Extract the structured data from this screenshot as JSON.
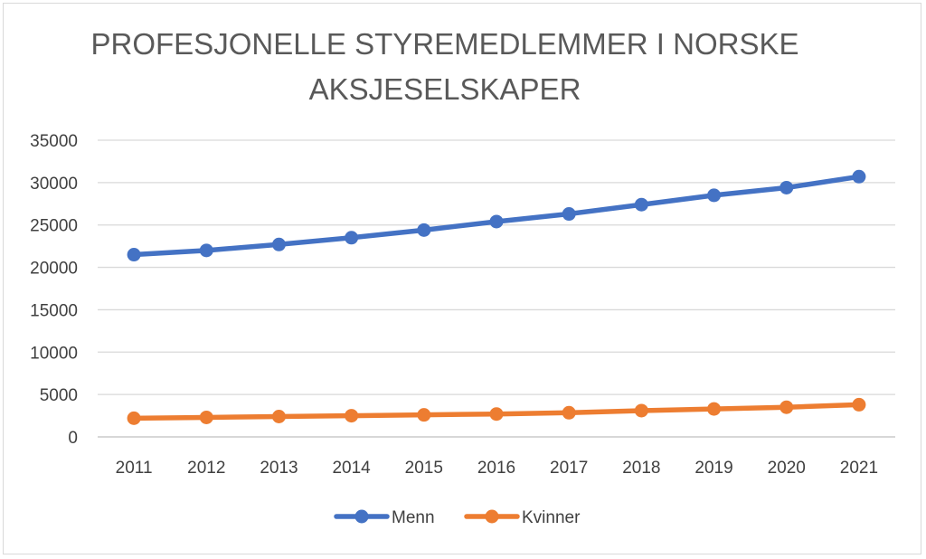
{
  "chart_data": {
    "type": "line",
    "title_lines": [
      "PROFESJONELLE STYREMEDLEMMER I NORSKE",
      "AKSJESELSKAPER"
    ],
    "xlabel": "",
    "ylabel": "",
    "categories": [
      "2011",
      "2012",
      "2013",
      "2014",
      "2015",
      "2016",
      "2017",
      "2018",
      "2019",
      "2020",
      "2021"
    ],
    "series": [
      {
        "name": "Menn",
        "color": "#4472c4",
        "values": [
          21500,
          22000,
          22700,
          23500,
          24400,
          25400,
          26300,
          27400,
          28500,
          29400,
          30700
        ]
      },
      {
        "name": "Kvinner",
        "color": "#ed7d31",
        "values": [
          2200,
          2300,
          2400,
          2500,
          2600,
          2700,
          2850,
          3100,
          3300,
          3500,
          3800
        ]
      }
    ],
    "ylim": [
      0,
      35000
    ],
    "yticks": [
      "0",
      "5000",
      "10000",
      "15000",
      "20000",
      "25000",
      "30000",
      "35000"
    ],
    "grid": true,
    "legend_position": "bottom"
  }
}
